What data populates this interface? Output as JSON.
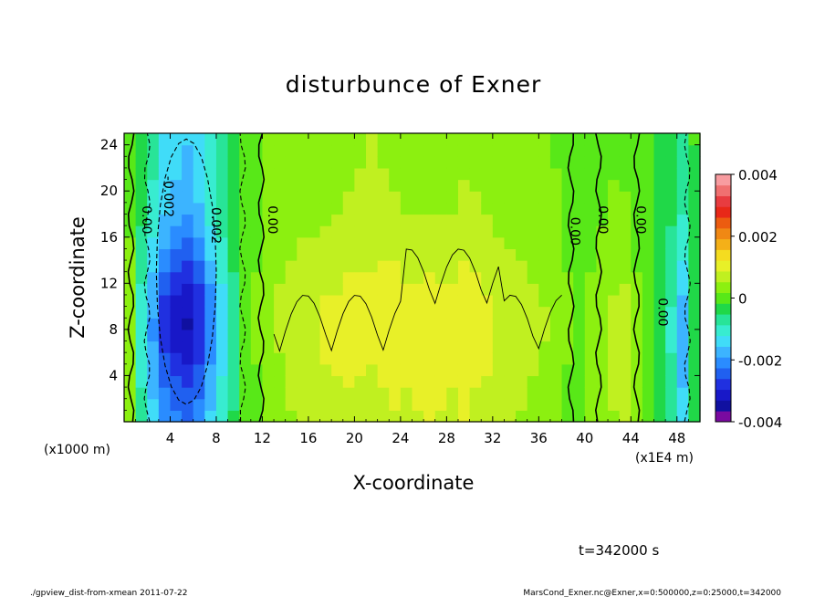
{
  "chart_data": {
    "type": "heatmap",
    "title": "disturbunce of Exner",
    "xlabel": "X-coordinate",
    "ylabel": "Z-coordinate",
    "x_unit": "(x1E4 m)",
    "y_unit": "(x1000 m)",
    "x_ticks": [
      "4",
      "8",
      "12",
      "16",
      "20",
      "24",
      "28",
      "32",
      "36",
      "40",
      "44",
      "48"
    ],
    "x_tick_values": [
      4,
      8,
      12,
      16,
      20,
      24,
      28,
      32,
      36,
      40,
      44,
      48
    ],
    "y_ticks": [
      "4",
      "8",
      "12",
      "16",
      "20",
      "24"
    ],
    "y_tick_values": [
      4,
      8,
      12,
      16,
      20,
      24
    ],
    "xlim": [
      0,
      50
    ],
    "ylim": [
      0,
      25
    ],
    "colorbar": {
      "ticks": [
        "0.004",
        "0.002",
        "0",
        "-0.002",
        "-0.004"
      ],
      "tick_values": [
        0.004,
        0.002,
        0,
        -0.002,
        -0.004
      ],
      "range": [
        -0.004,
        0.004
      ],
      "colors": [
        "#7a0aa0",
        "#1010a0",
        "#1818c8",
        "#2030e0",
        "#2060f0",
        "#2a8cff",
        "#3cb4ff",
        "#40dcf8",
        "#38ecd0",
        "#28e498",
        "#20d848",
        "#58e818",
        "#8cf010",
        "#c0f020",
        "#e8f028",
        "#f4dc20",
        "#f4b018",
        "#f08814",
        "#ec5c10",
        "#e82818",
        "#e83c40",
        "#f07070",
        "#f89ca0"
      ]
    },
    "contour_labels": [
      "0.00",
      "-0.002",
      "0.002",
      "0.00",
      "0.00",
      "0.00",
      "0.00",
      "0.00"
    ],
    "columns_x": [
      0.5,
      1.5,
      2.5,
      3.5,
      4.5,
      5.5,
      6.5,
      7.5,
      8.5,
      9.5,
      10.5,
      11.5,
      12.5,
      13.5,
      14.5,
      15.5,
      16.5,
      17.5,
      18.5,
      19.5,
      20.5,
      21.5,
      22.5,
      23.5,
      24.5,
      25.5,
      26.5,
      27.5,
      28.5,
      29.5,
      30.5,
      31.5,
      32.5,
      33.5,
      34.5,
      35.5,
      36.5,
      37.5,
      38.5,
      39.5,
      40.5,
      41.5,
      42.5,
      43.5,
      44.5,
      45.5,
      46.5,
      47.5,
      48.5,
      49.5
    ],
    "values_low_z": [
      0.0003,
      -0.0012,
      -0.0022,
      -0.003,
      -0.0034,
      -0.0036,
      -0.0032,
      -0.0024,
      -0.0016,
      -0.0008,
      0.0,
      0.0002,
      0.0004,
      0.0006,
      0.0008,
      0.0009,
      0.001,
      0.0011,
      0.0011,
      0.0012,
      0.0011,
      0.001,
      0.0012,
      0.0013,
      0.0012,
      0.0013,
      0.0014,
      0.0013,
      0.0012,
      0.0014,
      0.0012,
      0.0011,
      0.001,
      0.0009,
      0.0008,
      0.0007,
      0.0006,
      0.0004,
      0.0002,
      0.0002,
      0.0004,
      0.0006,
      0.0008,
      0.001,
      0.0004,
      0.0,
      -0.0004,
      -0.001,
      -0.0022,
      -0.0006
    ],
    "values_high_z": [
      0.0002,
      -0.0006,
      -0.0014,
      -0.0022,
      -0.0026,
      -0.0028,
      -0.0024,
      -0.0016,
      -0.001,
      -0.0004,
      0.0,
      0.0002,
      0.0004,
      0.0005,
      0.0005,
      0.0006,
      0.0006,
      0.0006,
      0.0007,
      0.0008,
      0.0009,
      0.001,
      0.0009,
      0.0008,
      0.0007,
      0.0006,
      0.0006,
      0.0006,
      0.0007,
      0.0008,
      0.0008,
      0.0007,
      0.0006,
      0.0005,
      0.0005,
      0.0004,
      0.0004,
      0.0003,
      0.0002,
      0.0001,
      0.0,
      0.0001,
      0.0002,
      0.0001,
      0.0,
      -0.0002,
      -0.0004,
      -0.0007,
      -0.001,
      -0.0003
    ]
  },
  "time_label": "t=342000 s",
  "footer_left": "./gpview_dist-from-xmean  2011-07-22",
  "footer_right": "MarsCond_Exner.nc@Exner,x=0:500000,z=0:25000,t=342000"
}
